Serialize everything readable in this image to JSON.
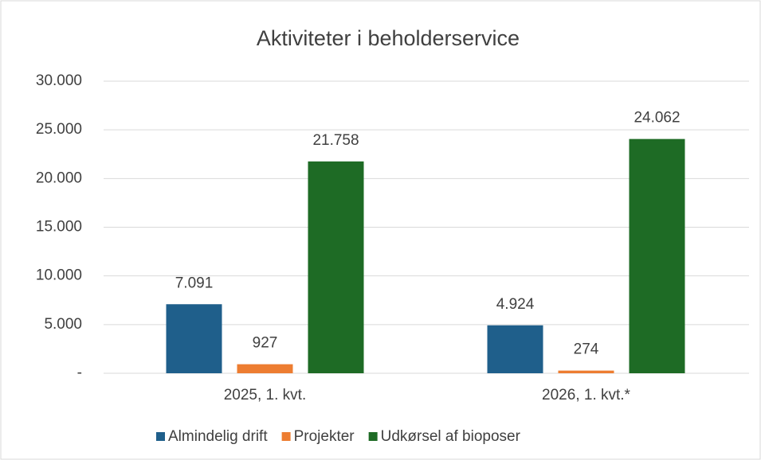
{
  "chart_data": {
    "type": "bar",
    "title": "Aktiviteter i beholderservice",
    "categories": [
      "2025, 1. kvt.",
      "2026, 1. kvt.*"
    ],
    "series": [
      {
        "name": "Almindelig drift",
        "color": "#1f5f8b",
        "values": [
          7091,
          4924
        ],
        "value_labels": [
          "7.091",
          "4.924"
        ]
      },
      {
        "name": "Projekter",
        "color": "#ed7d31",
        "values": [
          927,
          274
        ],
        "value_labels": [
          "927",
          "274"
        ]
      },
      {
        "name": "Udkørsel af bioposer",
        "color": "#1e6b25",
        "values": [
          21758,
          24062
        ],
        "value_labels": [
          "21.758",
          "24.062"
        ]
      }
    ],
    "ylim": [
      0,
      30000
    ],
    "yticks": [
      {
        "value": 0,
        "label": "-"
      },
      {
        "value": 5000,
        "label": "5.000"
      },
      {
        "value": 10000,
        "label": "10.000"
      },
      {
        "value": 15000,
        "label": "15.000"
      },
      {
        "value": 20000,
        "label": "20.000"
      },
      {
        "value": 25000,
        "label": "25.000"
      },
      {
        "value": 30000,
        "label": "30.000"
      }
    ],
    "grid": true,
    "legend": "bottom"
  }
}
